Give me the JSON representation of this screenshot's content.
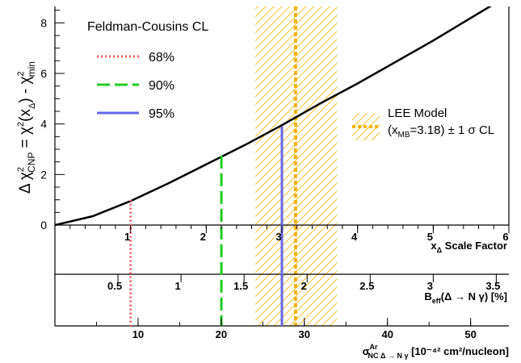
{
  "chart_data": {
    "type": "line",
    "ylabel": {
      "main": "Δ χ",
      "sup1": "2",
      "sub1": "CNP",
      "eq": " = χ",
      "sup2": "2",
      "paren": "(x",
      "sub2": "Δ",
      "close": ") - χ",
      "sup3": "2",
      "sub3": "min"
    },
    "ylim": [
      0,
      9
    ],
    "y_ticks": [
      "0",
      "2",
      "4",
      "6",
      "8"
    ],
    "x_axes": [
      {
        "label_main": "x",
        "label_sub": "Δ",
        "label_rest": " Scale Factor",
        "range": [
          0,
          6
        ],
        "tick_labels": [
          "1",
          "2",
          "3",
          "4",
          "5",
          "6"
        ]
      },
      {
        "label_main": "B",
        "label_sub": "eff",
        "label_rest": "(Δ → N γ) [%]",
        "range_of_scale_factor": [
          0,
          6
        ],
        "units_per_scale": 0.6,
        "tick_labels": [
          "0.5",
          "1",
          "1.5",
          "2",
          "2.5",
          "3",
          "3.5"
        ]
      },
      {
        "label_main": "σ",
        "label_sup": "Ar",
        "label_sub": "NC Δ → N γ",
        "label_rest": " [10⁻⁴² cm²/nucleon]",
        "units_per_scale": 9.1,
        "tick_labels": [
          "10",
          "20",
          "30",
          "40",
          "50"
        ]
      }
    ],
    "series": [
      {
        "name": "Δχ² curve",
        "x": [
          0,
          0.5,
          1,
          1.5,
          2,
          2.5,
          3,
          3.5,
          4,
          4.5,
          5,
          5.5,
          6
        ],
        "y": [
          0,
          0.35,
          0.95,
          1.65,
          2.4,
          3.15,
          3.95,
          4.8,
          5.6,
          6.45,
          7.3,
          8.2,
          9.1
        ]
      }
    ],
    "cl_lines": [
      {
        "label": "68%",
        "x": 1.0,
        "y": 1.0,
        "color": "#ff5a5a",
        "style": "dotted"
      },
      {
        "label": "90%",
        "x": 2.2,
        "y": 2.75,
        "color": "#22cc22",
        "style": "dashed"
      },
      {
        "label": "95%",
        "x": 3.0,
        "y": 3.9,
        "color": "#6666ee",
        "style": "solid"
      }
    ],
    "lee_model": {
      "central": 3.18,
      "band": [
        2.65,
        3.73
      ],
      "color": "#f5b100",
      "label_line1": "LEE Model",
      "label_line2_pre": "(x",
      "label_line2_sub": "MB",
      "label_line2_post": "=3.18) ± 1 σ CL"
    },
    "legend": {
      "title": "Feldman-Cousins CL",
      "position": "top-left"
    }
  }
}
